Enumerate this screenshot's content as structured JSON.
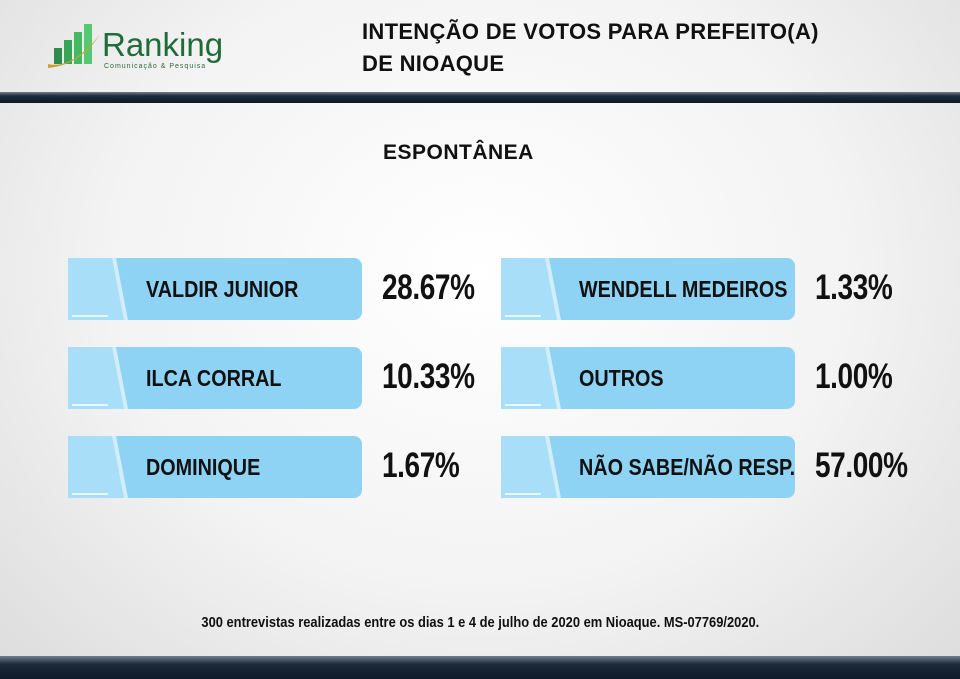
{
  "logo": {
    "name": "Ranking",
    "tagline": "Comunicação & Pesquisa"
  },
  "header": {
    "title_line1": "INTENÇÃO DE VOTOS PARA PREFEITO(A)",
    "title_line2": "DE NIOAQUE"
  },
  "chart_data": {
    "type": "table",
    "title": "INTENÇÃO DE VOTOS PARA PREFEITO(A) DE NIOAQUE",
    "subtitle": "ESPONTÂNEA",
    "categories": [
      "VALDIR JUNIOR",
      "ILCA CORRAL",
      "DOMINIQUE",
      "WENDELL MEDEIROS",
      "OUTROS",
      "NÃO SABE/NÃO RESP."
    ],
    "values": [
      28.67,
      10.33,
      1.67,
      1.33,
      1.0,
      57.0
    ],
    "labels": [
      "28.67%",
      "10.33%",
      "1.67%",
      "1.33%",
      "1.00%",
      "57.00%"
    ],
    "note": "300 entrevistas realizadas entre os dias 1 e 4 de julho de 2020 em Nioaque. MS-07769/2020."
  },
  "colors": {
    "pill": "#8fd3f4",
    "pill_tab": "#a8def8",
    "band": "#1e2c3b",
    "logo_green": "#1f6b3a"
  }
}
